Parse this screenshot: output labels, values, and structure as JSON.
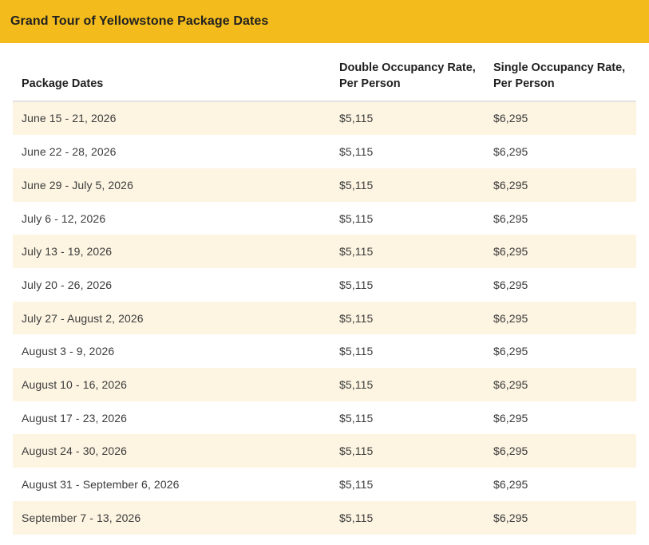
{
  "header": {
    "title": "Grand Tour of Yellowstone Package Dates"
  },
  "colors": {
    "accent_yellow": "#F3BB1B",
    "row_stripe_cream": "#FDF5E2",
    "header_text": "#1F1F1F",
    "body_text": "#3B3B3B",
    "divider": "#E2E2E2"
  },
  "table": {
    "columns": [
      "Package Dates",
      "Double Occupancy Rate, Per Person",
      "Single Occupancy Rate, Per Person"
    ],
    "rows": [
      {
        "dates": "June 15 - 21, 2026",
        "double_rate": "$5,115",
        "single_rate": "$6,295"
      },
      {
        "dates": "June 22 - 28, 2026",
        "double_rate": "$5,115",
        "single_rate": "$6,295"
      },
      {
        "dates": "June 29 - July 5, 2026",
        "double_rate": "$5,115",
        "single_rate": "$6,295"
      },
      {
        "dates": "July 6 - 12, 2026",
        "double_rate": "$5,115",
        "single_rate": "$6,295"
      },
      {
        "dates": "July 13 - 19, 2026",
        "double_rate": "$5,115",
        "single_rate": "$6,295"
      },
      {
        "dates": "July 20 - 26, 2026",
        "double_rate": "$5,115",
        "single_rate": "$6,295"
      },
      {
        "dates": "July 27 - August 2, 2026",
        "double_rate": "$5,115",
        "single_rate": "$6,295"
      },
      {
        "dates": "August 3 - 9, 2026",
        "double_rate": "$5,115",
        "single_rate": "$6,295"
      },
      {
        "dates": "August 10 - 16, 2026",
        "double_rate": "$5,115",
        "single_rate": "$6,295"
      },
      {
        "dates": "August 17 - 23, 2026",
        "double_rate": "$5,115",
        "single_rate": "$6,295"
      },
      {
        "dates": "August 24 - 30, 2026",
        "double_rate": "$5,115",
        "single_rate": "$6,295"
      },
      {
        "dates": "August 31 - September 6, 2026",
        "double_rate": "$5,115",
        "single_rate": "$6,295"
      },
      {
        "dates": "September 7 - 13, 2026",
        "double_rate": "$5,115",
        "single_rate": "$6,295"
      }
    ]
  }
}
